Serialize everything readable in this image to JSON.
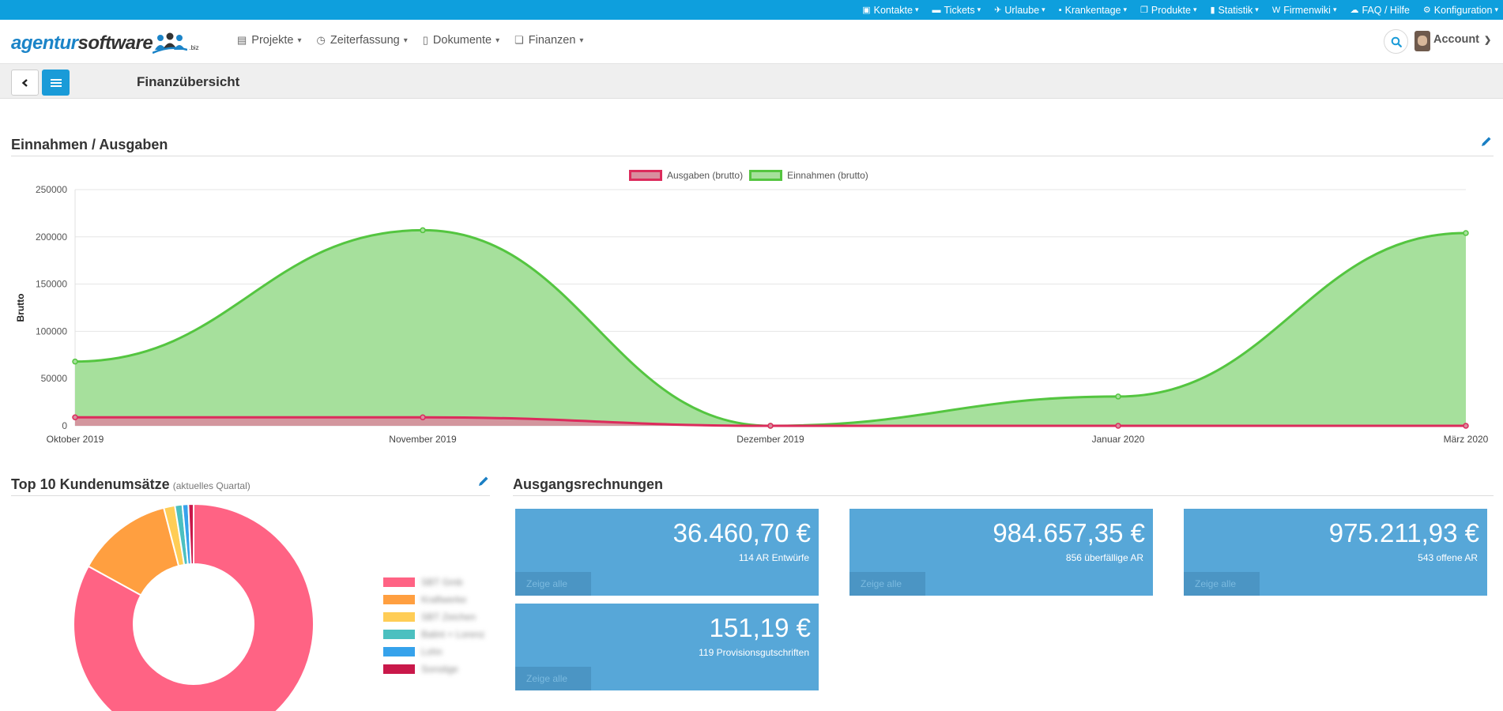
{
  "topbar": {
    "items": [
      {
        "label": "Kontakte",
        "icon": "contact-card-icon",
        "glyph": "▣"
      },
      {
        "label": "Tickets",
        "icon": "ticket-icon",
        "glyph": "▬"
      },
      {
        "label": "Urlaube",
        "icon": "plane-icon",
        "glyph": "✈"
      },
      {
        "label": "Krankentage",
        "icon": "medkit-icon",
        "glyph": "▪"
      },
      {
        "label": "Produkte",
        "icon": "copy-icon",
        "glyph": "❐"
      },
      {
        "label": "Statistik",
        "icon": "bar-chart-icon",
        "glyph": "▮"
      },
      {
        "label": "Firmenwiki",
        "icon": "wikipedia-icon",
        "glyph": "W"
      },
      {
        "label": "FAQ / Hilfe",
        "icon": "comments-icon",
        "glyph": "☁",
        "no_chevron": true
      },
      {
        "label": "Konfiguration",
        "icon": "cogs-icon",
        "glyph": "⚙"
      }
    ]
  },
  "brand": {
    "part1": "agentur",
    "part2": "software",
    "suffix": ".biz"
  },
  "nav": {
    "items": [
      {
        "label": "Projekte",
        "icon": "briefcase-icon",
        "glyph": "▤"
      },
      {
        "label": "Zeiterfassung",
        "icon": "clock-icon",
        "glyph": "◷"
      },
      {
        "label": "Dokumente",
        "icon": "file-icon",
        "glyph": "▯"
      },
      {
        "label": "Finanzen",
        "icon": "money-icon",
        "glyph": "❏"
      }
    ],
    "account_label": "Account"
  },
  "page": {
    "title": "Finanzübersicht"
  },
  "income_section": {
    "title": "Einnahmen / Ausgaben"
  },
  "chart_data": {
    "type": "area",
    "title": "",
    "xlabel": "",
    "ylabel": "Brutto",
    "categories": [
      "Oktober 2019",
      "November 2019",
      "Dezember 2019",
      "Januar 2020",
      "März 2020"
    ],
    "ylim": [
      0,
      250000
    ],
    "yticks": [
      "250000",
      "200000",
      "150000",
      "100000",
      "50000",
      "0"
    ],
    "grid": true,
    "legend_position": "top",
    "series": [
      {
        "name": "Ausgaben (brutto)",
        "values": [
          9000,
          9000,
          0,
          0,
          0
        ],
        "color": "#dc2b5c",
        "fill": "#d88e9e"
      },
      {
        "name": "Einnahmen (brutto)",
        "values": [
          68000,
          207000,
          0,
          31000,
          204000
        ],
        "color": "#54c540",
        "fill": "#a6e09c"
      }
    ]
  },
  "top10": {
    "title": "Top 10 Kundenumsätze",
    "subtitle": "(aktuelles Quartal)",
    "chart_data": {
      "type": "pie",
      "values": [
        83,
        13,
        1.5,
        1,
        0.8,
        0.7
      ],
      "colors": [
        "#ff6384",
        "#ff9f40",
        "#ffcd56",
        "#4bc0c0",
        "#36a2eb",
        "#c9184a"
      ]
    },
    "legend_labels": [
      "SBT Gmb",
      "Kraftwerke",
      "SBT Zeichen",
      "Balint + Lorenz",
      "Lohn",
      "Sonstige"
    ]
  },
  "invoices": {
    "title": "Ausgangsrechnungen",
    "boxes": [
      {
        "amount": "36.460,70 €",
        "desc": "114 AR Entwürfe",
        "link": "Zeige alle"
      },
      {
        "amount": "984.657,35 €",
        "desc": "856 überfällige AR",
        "link": "Zeige alle"
      },
      {
        "amount": "975.211,93 €",
        "desc": "543 offene AR",
        "link": "Zeige alle"
      },
      {
        "amount": "151,19 €",
        "desc": "119 Provisionsgutschriften",
        "link": "Zeige alle"
      }
    ]
  }
}
